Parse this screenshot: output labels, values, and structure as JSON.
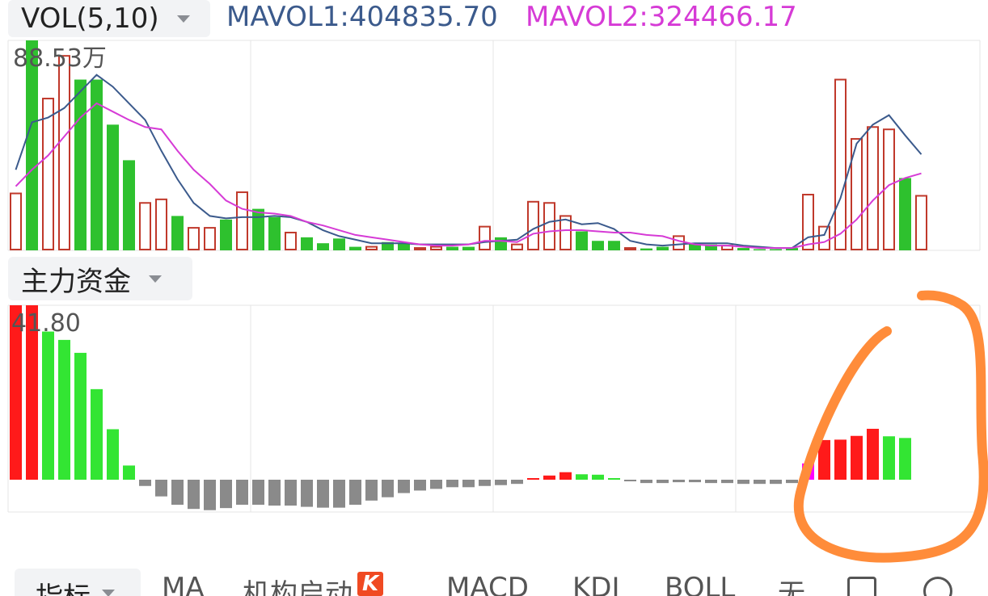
{
  "header": {
    "indicator_select": "VOL(5,10)",
    "mavol1": "MAVOL1:404835.70",
    "mavol2": "MAVOL2:324466.17"
  },
  "panel2": {
    "indicator_select": "主力资金"
  },
  "colors": {
    "mavol1": "#3b5a8c",
    "mavol2": "#d63bd6",
    "up": "#e8202a",
    "down": "#2ec12e",
    "neutral": "#8a8a8a",
    "annotation": "#ff8c3a"
  },
  "tabs": {
    "active": "指标",
    "items": [
      "MA",
      "机构启动",
      "MACD",
      "KDJ",
      "BOLL",
      "无"
    ],
    "badge": "K"
  },
  "chart_data": [
    {
      "type": "bar",
      "title": "VOL(5,10)",
      "max_label": "88.53万",
      "ylim": [
        0,
        885300
      ],
      "grid": true,
      "note": "volume bars: filled green = down day, hollow red = up day",
      "bars": [
        {
          "v": 240000,
          "c": "up"
        },
        {
          "v": 885300,
          "c": "down"
        },
        {
          "v": 640000,
          "c": "up"
        },
        {
          "v": 820000,
          "c": "up"
        },
        {
          "v": 720000,
          "c": "down"
        },
        {
          "v": 720000,
          "c": "down"
        },
        {
          "v": 530000,
          "c": "down"
        },
        {
          "v": 380000,
          "c": "down"
        },
        {
          "v": 200000,
          "c": "up"
        },
        {
          "v": 215000,
          "c": "up"
        },
        {
          "v": 145000,
          "c": "down"
        },
        {
          "v": 95000,
          "c": "up"
        },
        {
          "v": 95000,
          "c": "up"
        },
        {
          "v": 130000,
          "c": "down"
        },
        {
          "v": 245000,
          "c": "up"
        },
        {
          "v": 175000,
          "c": "down"
        },
        {
          "v": 140000,
          "c": "down"
        },
        {
          "v": 75000,
          "c": "up"
        },
        {
          "v": 55000,
          "c": "down"
        },
        {
          "v": 30000,
          "c": "down"
        },
        {
          "v": 50000,
          "c": "down"
        },
        {
          "v": 15000,
          "c": "down"
        },
        {
          "v": 15000,
          "c": "up"
        },
        {
          "v": 35000,
          "c": "down"
        },
        {
          "v": 30000,
          "c": "down"
        },
        {
          "v": 10000,
          "c": "up"
        },
        {
          "v": 15000,
          "c": "up"
        },
        {
          "v": 15000,
          "c": "down"
        },
        {
          "v": 15000,
          "c": "down"
        },
        {
          "v": 100000,
          "c": "up"
        },
        {
          "v": 55000,
          "c": "down"
        },
        {
          "v": 25000,
          "c": "up"
        },
        {
          "v": 205000,
          "c": "up"
        },
        {
          "v": 200000,
          "c": "up"
        },
        {
          "v": 145000,
          "c": "up"
        },
        {
          "v": 80000,
          "c": "down"
        },
        {
          "v": 40000,
          "c": "down"
        },
        {
          "v": 40000,
          "c": "down"
        },
        {
          "v": 10000,
          "c": "up"
        },
        {
          "v": 8000,
          "c": "down"
        },
        {
          "v": 15000,
          "c": "down"
        },
        {
          "v": 60000,
          "c": "up"
        },
        {
          "v": 30000,
          "c": "down"
        },
        {
          "v": 25000,
          "c": "down"
        },
        {
          "v": 20000,
          "c": "up"
        },
        {
          "v": 10000,
          "c": "down"
        },
        {
          "v": 5000,
          "c": "down"
        },
        {
          "v": 5000,
          "c": "down"
        },
        {
          "v": 10000,
          "c": "down"
        },
        {
          "v": 235000,
          "c": "up"
        },
        {
          "v": 100000,
          "c": "up"
        },
        {
          "v": 720000,
          "c": "up"
        },
        {
          "v": 470000,
          "c": "up"
        },
        {
          "v": 520000,
          "c": "up"
        },
        {
          "v": 510000,
          "c": "up"
        },
        {
          "v": 305000,
          "c": "down"
        },
        {
          "v": 230000,
          "c": "up"
        }
      ],
      "series": [
        {
          "name": "MAVOL1",
          "color": "#3b5a8c",
          "values": [
            340000,
            540000,
            560000,
            600000,
            670000,
            740000,
            690000,
            620000,
            550000,
            420000,
            300000,
            200000,
            145000,
            135000,
            140000,
            140000,
            145000,
            140000,
            120000,
            85000,
            60000,
            45000,
            30000,
            30000,
            30000,
            25000,
            25000,
            25000,
            25000,
            35000,
            40000,
            45000,
            90000,
            120000,
            130000,
            110000,
            115000,
            90000,
            40000,
            25000,
            20000,
            25000,
            30000,
            30000,
            30000,
            20000,
            15000,
            10000,
            10000,
            55000,
            65000,
            220000,
            450000,
            530000,
            570000,
            485000,
            404836
          ]
        },
        {
          "name": "MAVOL2",
          "color": "#d63bd6",
          "values": [
            270000,
            340000,
            400000,
            480000,
            560000,
            620000,
            585000,
            550000,
            520000,
            510000,
            420000,
            340000,
            280000,
            210000,
            175000,
            160000,
            155000,
            145000,
            120000,
            105000,
            85000,
            65000,
            55000,
            45000,
            35000,
            25000,
            20000,
            20000,
            25000,
            40000,
            40000,
            35000,
            70000,
            80000,
            85000,
            85000,
            80000,
            75000,
            75000,
            65000,
            60000,
            40000,
            25000,
            20000,
            20000,
            15000,
            10000,
            10000,
            10000,
            25000,
            35000,
            70000,
            130000,
            210000,
            275000,
            305000,
            324466
          ]
        }
      ]
    },
    {
      "type": "bar",
      "title": "主力资金",
      "max_label": "41.80",
      "ylim": [
        -7.3,
        41.8
      ],
      "grid": true,
      "bars": [
        {
          "v": 41.8,
          "c": "up"
        },
        {
          "v": 41.8,
          "c": "up"
        },
        {
          "v": 35.5,
          "c": "down"
        },
        {
          "v": 33.5,
          "c": "down"
        },
        {
          "v": 30.4,
          "c": "down"
        },
        {
          "v": 21.7,
          "c": "down"
        },
        {
          "v": 12.1,
          "c": "down"
        },
        {
          "v": 3.4,
          "c": "down"
        },
        {
          "v": -1.5,
          "c": "neutral"
        },
        {
          "v": -4.0,
          "c": "neutral"
        },
        {
          "v": -6.0,
          "c": "neutral"
        },
        {
          "v": -7.0,
          "c": "neutral"
        },
        {
          "v": -7.3,
          "c": "neutral"
        },
        {
          "v": -6.8,
          "c": "neutral"
        },
        {
          "v": -6.0,
          "c": "neutral"
        },
        {
          "v": -6.0,
          "c": "neutral"
        },
        {
          "v": -6.2,
          "c": "neutral"
        },
        {
          "v": -6.2,
          "c": "neutral"
        },
        {
          "v": -6.5,
          "c": "neutral"
        },
        {
          "v": -6.7,
          "c": "neutral"
        },
        {
          "v": -6.7,
          "c": "neutral"
        },
        {
          "v": -6.0,
          "c": "neutral"
        },
        {
          "v": -5.0,
          "c": "neutral"
        },
        {
          "v": -4.2,
          "c": "neutral"
        },
        {
          "v": -3.2,
          "c": "neutral"
        },
        {
          "v": -2.6,
          "c": "neutral"
        },
        {
          "v": -2.2,
          "c": "neutral"
        },
        {
          "v": -1.8,
          "c": "neutral"
        },
        {
          "v": -1.8,
          "c": "neutral"
        },
        {
          "v": -1.5,
          "c": "neutral"
        },
        {
          "v": -1.3,
          "c": "neutral"
        },
        {
          "v": -1.0,
          "c": "neutral"
        },
        {
          "v": 0.2,
          "c": "up"
        },
        {
          "v": 1.0,
          "c": "up"
        },
        {
          "v": 1.8,
          "c": "up"
        },
        {
          "v": 1.3,
          "c": "down"
        },
        {
          "v": 1.2,
          "c": "down"
        },
        {
          "v": 0.3,
          "c": "down"
        },
        {
          "v": -0.3,
          "c": "neutral"
        },
        {
          "v": -0.8,
          "c": "neutral"
        },
        {
          "v": -0.8,
          "c": "neutral"
        },
        {
          "v": -0.6,
          "c": "neutral"
        },
        {
          "v": -0.6,
          "c": "neutral"
        },
        {
          "v": -0.8,
          "c": "neutral"
        },
        {
          "v": -0.8,
          "c": "neutral"
        },
        {
          "v": -1.0,
          "c": "neutral"
        },
        {
          "v": -1.0,
          "c": "neutral"
        },
        {
          "v": -1.0,
          "c": "neutral"
        },
        {
          "v": -0.8,
          "c": "neutral"
        },
        {
          "v": 3.9,
          "c": "mag"
        },
        {
          "v": 9.5,
          "c": "up"
        },
        {
          "v": 9.6,
          "c": "up"
        },
        {
          "v": 10.5,
          "c": "up"
        },
        {
          "v": 12.2,
          "c": "up"
        },
        {
          "v": 10.4,
          "c": "down"
        },
        {
          "v": 10.0,
          "c": "down"
        }
      ]
    }
  ]
}
